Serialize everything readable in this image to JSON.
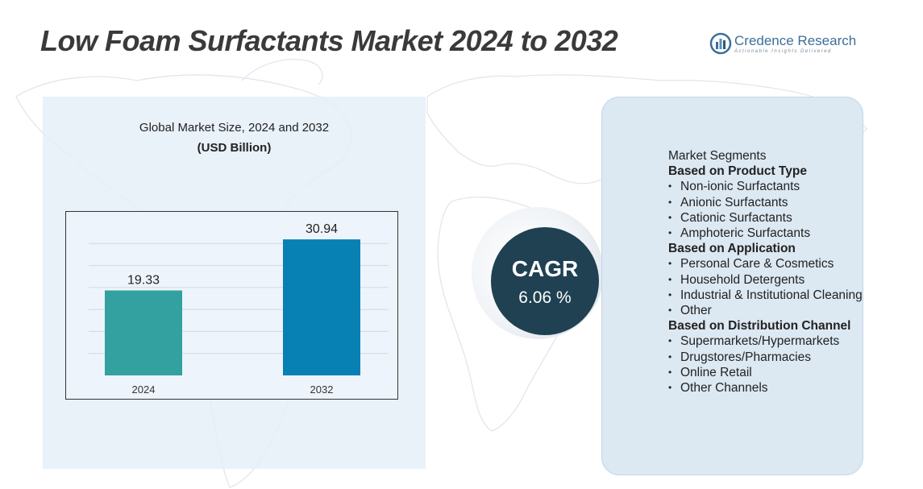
{
  "header": {
    "title": "Low Foam Surfactants Market 2024 to 2032"
  },
  "brand": {
    "name": "Credence Research",
    "tagline": "Actionable Insights Delivered"
  },
  "chart_data": {
    "type": "bar",
    "title": "Global Market Size, 2024 and 2032",
    "unit": "(USD Billion)",
    "categories": [
      "2024",
      "2032"
    ],
    "values": [
      19.33,
      30.94
    ],
    "value_labels": [
      "19.33",
      "30.94"
    ],
    "colors": [
      "#33a1a0",
      "#0780b3"
    ],
    "ylim": [
      0,
      35
    ],
    "grid": true,
    "xlabel": "",
    "ylabel": ""
  },
  "cagr": {
    "label": "CAGR",
    "value": "6.06 %"
  },
  "segments": {
    "heading": "Market Segments",
    "groups": [
      {
        "title": "Based on Product Type",
        "items": [
          "Non-ionic Surfactants",
          "Anionic Surfactants",
          "Cationic Surfactants",
          "Amphoteric Surfactants"
        ]
      },
      {
        "title": "Based on Application",
        "items": [
          "Personal Care & Cosmetics",
          "Household Detergents",
          "Industrial & Institutional Cleaning",
          "Other"
        ]
      },
      {
        "title": "Based on Distribution Channel",
        "items": [
          "Supermarkets/Hypermarkets",
          "Drugstores/Pharmacies",
          "Online Retail",
          "Other Channels"
        ]
      }
    ]
  }
}
